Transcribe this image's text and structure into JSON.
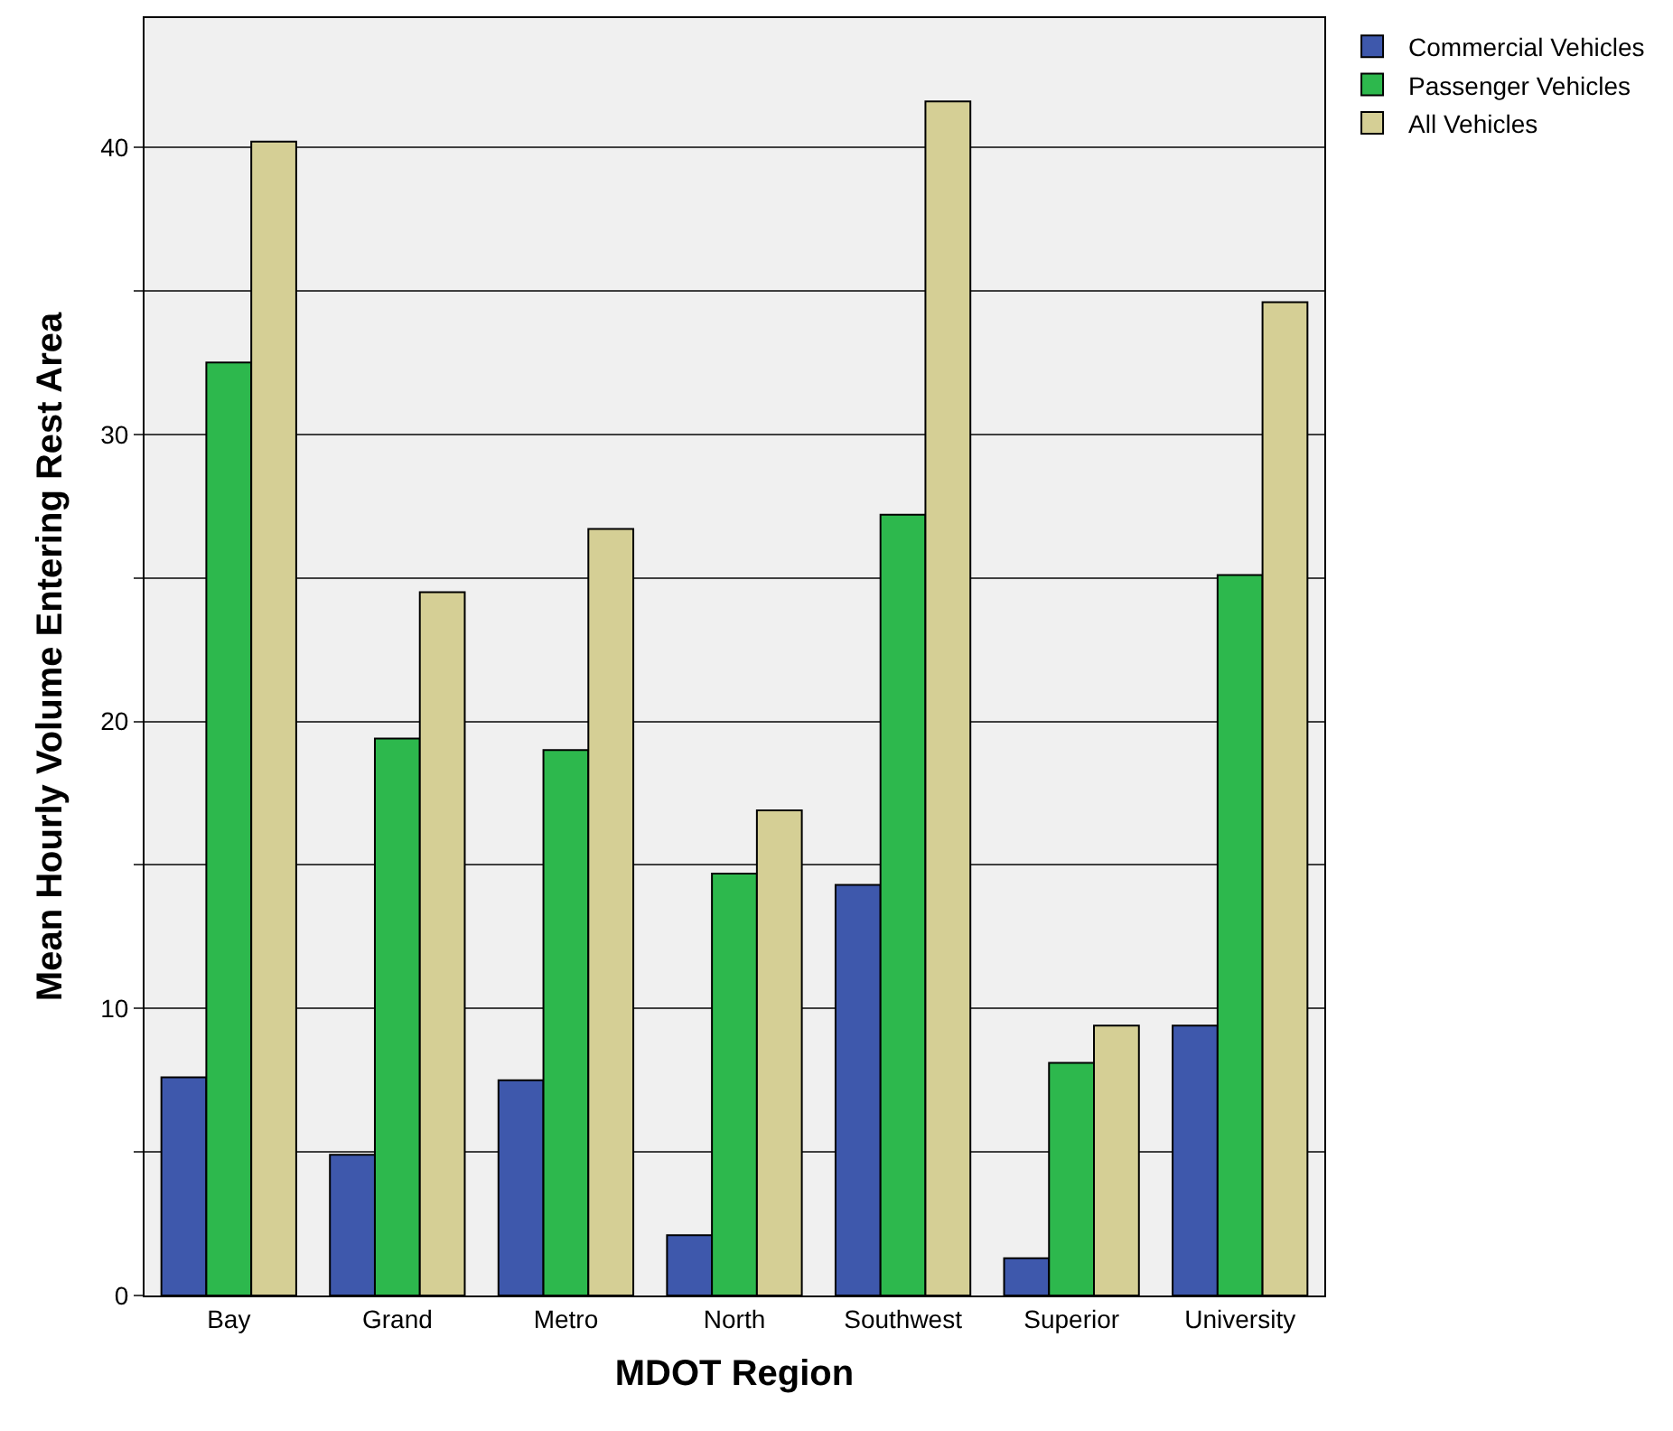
{
  "chart_data": {
    "type": "bar",
    "xlabel": "MDOT Region",
    "ylabel": "Mean Hourly Volume Entering Rest Area",
    "categories": [
      "Bay",
      "Grand",
      "Metro",
      "North",
      "Southwest",
      "Superior",
      "University"
    ],
    "series": [
      {
        "name": "Commercial Vehicles",
        "color": "#3e58ac",
        "values": [
          7.6,
          4.9,
          7.5,
          2.1,
          14.3,
          1.3,
          9.4
        ]
      },
      {
        "name": "Passenger Vehicles",
        "color": "#2db84d",
        "values": [
          32.5,
          19.4,
          19.0,
          14.7,
          27.2,
          8.1,
          25.1
        ]
      },
      {
        "name": "All Vehicles",
        "color": "#d5cf95",
        "values": [
          40.2,
          24.5,
          26.7,
          16.9,
          41.6,
          9.4,
          34.6
        ]
      }
    ],
    "ylim": [
      0,
      44.5
    ],
    "yticks": [
      0,
      {
        "value": 5,
        "label": null
      },
      10,
      {
        "value": 15,
        "label": null
      },
      20,
      {
        "value": 25,
        "label": null
      },
      30,
      {
        "value": 35,
        "label": null
      },
      40
    ],
    "grid": "y",
    "legend": "top right"
  }
}
